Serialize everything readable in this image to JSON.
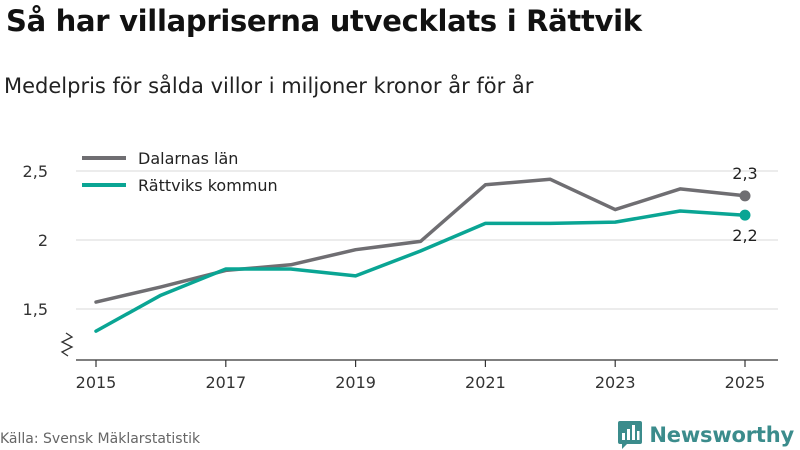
{
  "title": "Så har villapriserna utvecklats i Rättvik",
  "subtitle": "Medelpris för sålda villor i miljoner kronor år för år",
  "source": "Källa: Svensk Mäklarstatistik",
  "brand": "Newsworthy",
  "colors": {
    "dalarna": "#6f6e72",
    "rattvik": "#0aa594",
    "grid": "#d9d9d9",
    "axis": "#333333",
    "brand": "#3b8c8c"
  },
  "chart_data": {
    "type": "line",
    "title": "Så har villapriserna utvecklats i Rättvik",
    "subtitle": "Medelpris för sålda villor i miljoner kronor år för år",
    "xlabel": "",
    "ylabel": "",
    "x": [
      2015,
      2016,
      2017,
      2018,
      2019,
      2020,
      2021,
      2022,
      2023,
      2024,
      2025
    ],
    "x_tick_labels": [
      "2015",
      "2017",
      "2019",
      "2021",
      "2023",
      "2025"
    ],
    "x_tick_values": [
      2015,
      2017,
      2019,
      2021,
      2023,
      2025
    ],
    "y_tick_labels": [
      "1,5",
      "2",
      "2,5"
    ],
    "y_tick_values": [
      1.5,
      2.0,
      2.5
    ],
    "ylim": [
      1.15,
      2.55
    ],
    "xlim": [
      2015,
      2025
    ],
    "grid": true,
    "axis_break": true,
    "legend_position": "top-left",
    "series": [
      {
        "name": "Dalarnas län",
        "color": "#6f6e72",
        "values": [
          1.55,
          1.66,
          1.78,
          1.82,
          1.93,
          1.99,
          2.4,
          2.44,
          2.22,
          2.37,
          2.32
        ],
        "end_label": "2,3"
      },
      {
        "name": "Rättviks kommun",
        "color": "#0aa594",
        "values": [
          1.34,
          1.6,
          1.79,
          1.79,
          1.74,
          1.92,
          2.12,
          2.12,
          2.13,
          2.21,
          2.18
        ],
        "end_label": "2,2"
      }
    ]
  }
}
